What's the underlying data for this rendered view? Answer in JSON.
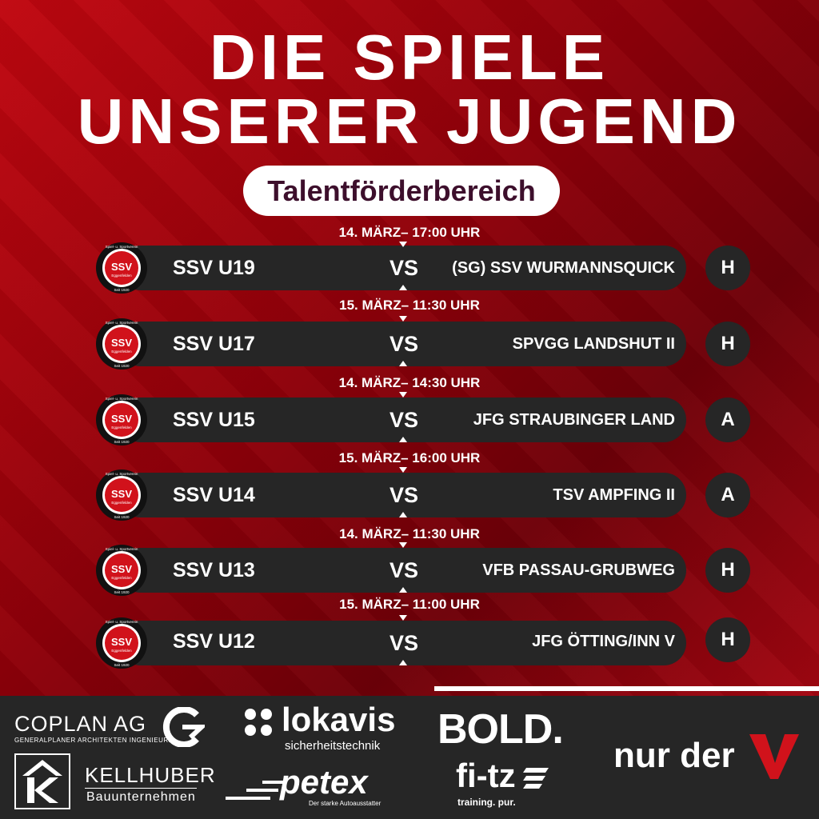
{
  "header": {
    "line1": "DIE SPIELE",
    "line2": "UNSERER JUGEND",
    "subtitle": "Talentförderbereich"
  },
  "matches": [
    {
      "date": "14. MÄRZ– 17:00 UHR",
      "home": "SSV U19",
      "vs": "VS",
      "away": "(SG) SSV WURMANNSQUICK",
      "venue": "H"
    },
    {
      "date": "15. MÄRZ– 11:30 UHR",
      "home": "SSV U17",
      "vs": "VS",
      "away": "SPVGG LANDSHUT II",
      "venue": "H"
    },
    {
      "date": "14. MÄRZ– 14:30 UHR",
      "home": "SSV U15",
      "vs": "VS",
      "away": "JFG STRAUBINGER LAND",
      "venue": "A"
    },
    {
      "date": "15. MÄRZ– 16:00 UHR",
      "home": "SSV U14",
      "vs": "VS",
      "away": "TSV AMPFING II",
      "venue": "A"
    },
    {
      "date": "14. MÄRZ– 11:30 UHR",
      "home": "SSV U13",
      "vs": "VS",
      "away": "VFB PASSAU-GRUBWEG",
      "venue": "H"
    },
    {
      "date": "15. MÄRZ– 11:00 UHR",
      "home": "SSV U12",
      "vs": "VS",
      "away": "JFG ÖTTING/INN V",
      "venue": "H"
    }
  ],
  "club_logo": {
    "text": "SSV",
    "sub": "Eggenfelden",
    "top": "Spiel- u. Sportverein",
    "since": "Seit 1920",
    "colors": {
      "red": "#d1121b",
      "black": "#111111"
    }
  },
  "sponsors": {
    "coplan": {
      "name": "COPLAN AG",
      "tagline": "GENERALPLANER ARCHITEKTEN INGENIEURE"
    },
    "lokavis": {
      "name": "lokavis",
      "tagline": "sicherheitstechnik"
    },
    "bold": {
      "name": "BOLD."
    },
    "nurderv": {
      "name": "nur der"
    },
    "kellhuber": {
      "name": "KELLHUBER",
      "tagline": "Bauunternehmen"
    },
    "petex": {
      "name": "petex",
      "tagline": "Der starke Autoausstatter"
    },
    "fitz": {
      "name": "fi-tz",
      "tagline": "training. pur."
    }
  },
  "colors": {
    "bg_red": "#a00010",
    "bar": "#262626",
    "pill_text": "#3d0f2c"
  }
}
